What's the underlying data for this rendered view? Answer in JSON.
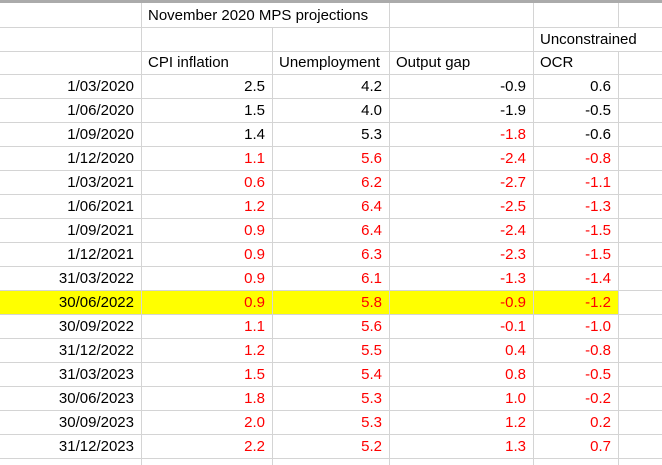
{
  "title": "November 2020 MPS projections",
  "headers": {
    "unconstrained_line": "Unconstrained",
    "cpi": "CPI inflation",
    "unemployment": "Unemployment",
    "output_gap": "Output gap",
    "ocr": "OCR"
  },
  "colors": {
    "value_red": "#ff0000",
    "text_black": "#000000",
    "highlight_yellow": "#ffff00",
    "gridline": "#d4d4d4",
    "top_strip": "#ababab"
  },
  "rows": [
    {
      "date": "1/03/2020",
      "values": [
        "2.5",
        "4.2",
        "-0.9",
        "0.6"
      ],
      "red": [
        false,
        false,
        false,
        false
      ],
      "highlight": false
    },
    {
      "date": "1/06/2020",
      "values": [
        "1.5",
        "4.0",
        "-1.9",
        "-0.5"
      ],
      "red": [
        false,
        false,
        false,
        false
      ],
      "highlight": false
    },
    {
      "date": "1/09/2020",
      "values": [
        "1.4",
        "5.3",
        "-1.8",
        "-0.6"
      ],
      "red": [
        false,
        false,
        true,
        false
      ],
      "highlight": false
    },
    {
      "date": "1/12/2020",
      "values": [
        "1.1",
        "5.6",
        "-2.4",
        "-0.8"
      ],
      "red": [
        true,
        true,
        true,
        true
      ],
      "highlight": false
    },
    {
      "date": "1/03/2021",
      "values": [
        "0.6",
        "6.2",
        "-2.7",
        "-1.1"
      ],
      "red": [
        true,
        true,
        true,
        true
      ],
      "highlight": false
    },
    {
      "date": "1/06/2021",
      "values": [
        "1.2",
        "6.4",
        "-2.5",
        "-1.3"
      ],
      "red": [
        true,
        true,
        true,
        true
      ],
      "highlight": false
    },
    {
      "date": "1/09/2021",
      "values": [
        "0.9",
        "6.4",
        "-2.4",
        "-1.5"
      ],
      "red": [
        true,
        true,
        true,
        true
      ],
      "highlight": false
    },
    {
      "date": "1/12/2021",
      "values": [
        "0.9",
        "6.3",
        "-2.3",
        "-1.5"
      ],
      "red": [
        true,
        true,
        true,
        true
      ],
      "highlight": false
    },
    {
      "date": "31/03/2022",
      "values": [
        "0.9",
        "6.1",
        "-1.3",
        "-1.4"
      ],
      "red": [
        true,
        true,
        true,
        true
      ],
      "highlight": false
    },
    {
      "date": "30/06/2022",
      "values": [
        "0.9",
        "5.8",
        "-0.9",
        "-1.2"
      ],
      "red": [
        true,
        true,
        true,
        true
      ],
      "highlight": true
    },
    {
      "date": "30/09/2022",
      "values": [
        "1.1",
        "5.6",
        "-0.1",
        "-1.0"
      ],
      "red": [
        true,
        true,
        true,
        true
      ],
      "highlight": false
    },
    {
      "date": "31/12/2022",
      "values": [
        "1.2",
        "5.5",
        "0.4",
        "-0.8"
      ],
      "red": [
        true,
        true,
        true,
        true
      ],
      "highlight": false
    },
    {
      "date": "31/03/2023",
      "values": [
        "1.5",
        "5.4",
        "0.8",
        "-0.5"
      ],
      "red": [
        true,
        true,
        true,
        true
      ],
      "highlight": false
    },
    {
      "date": "30/06/2023",
      "values": [
        "1.8",
        "5.3",
        "1.0",
        "-0.2"
      ],
      "red": [
        true,
        true,
        true,
        true
      ],
      "highlight": false
    },
    {
      "date": "30/09/2023",
      "values": [
        "2.0",
        "5.3",
        "1.2",
        "0.2"
      ],
      "red": [
        true,
        true,
        true,
        true
      ],
      "highlight": false
    },
    {
      "date": "31/12/2023",
      "values": [
        "2.2",
        "5.2",
        "1.3",
        "0.7"
      ],
      "red": [
        true,
        true,
        true,
        true
      ],
      "highlight": false
    }
  ]
}
